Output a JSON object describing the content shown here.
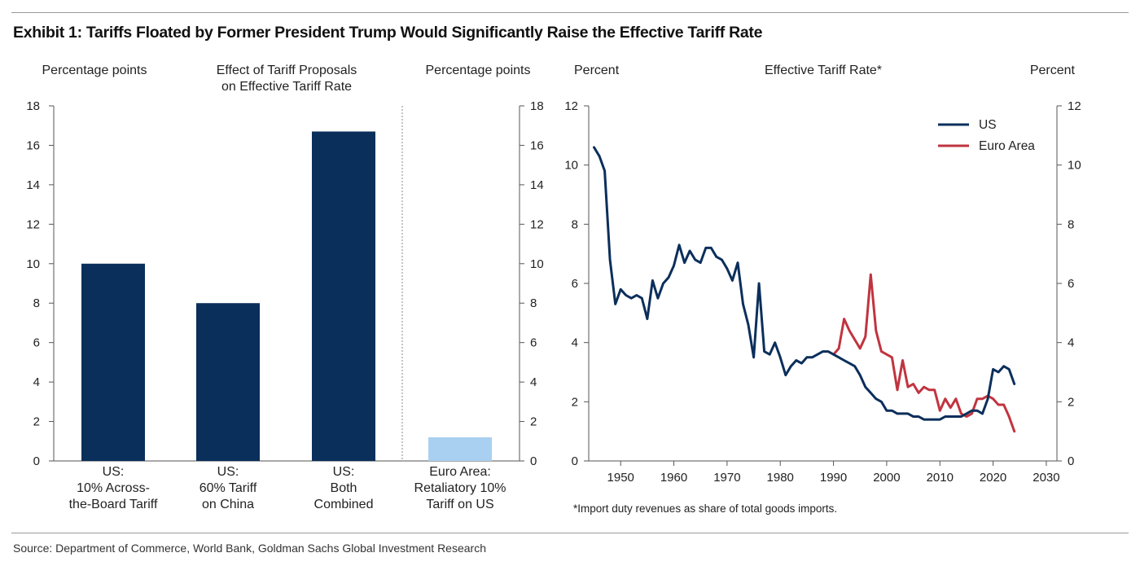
{
  "exhibit_title": "Exhibit 1: Tariffs Floated by Former President Trump Would Significantly Raise the Effective Tariff Rate",
  "source": "Source: Department of Commerce, World Bank, Goldman Sachs Global Investment Research",
  "chart_data": [
    {
      "type": "bar",
      "title": "Effect of Tariff Proposals on Effective Tariff Rate",
      "title_lines": [
        "Effect of Tariff Proposals",
        "on Effective Tariff Rate"
      ],
      "ylabel_left": "Percentage points",
      "ylabel_right": "Percentage points",
      "ylim": [
        0,
        18
      ],
      "yticks": [
        0,
        2,
        4,
        6,
        8,
        10,
        12,
        14,
        16,
        18
      ],
      "categories": [
        [
          "US:",
          "10% Across-",
          "the-Board Tariff"
        ],
        [
          "US:",
          "60% Tariff",
          "on China"
        ],
        [
          "US:",
          "Both",
          "Combined"
        ],
        [
          "Euro Area:",
          "Retaliatory 10%",
          "Tariff on US"
        ]
      ],
      "values": [
        10.0,
        8.0,
        16.7,
        1.2
      ],
      "colors": [
        "#0b2f5b",
        "#0b2f5b",
        "#0b2f5b",
        "#a9d0f0"
      ]
    },
    {
      "type": "line",
      "title": "Effective Tariff Rate*",
      "ylabel_left": "Percent",
      "ylabel_right": "Percent",
      "xlim": [
        1944,
        2032
      ],
      "ylim": [
        0,
        12
      ],
      "xticks": [
        1950,
        1960,
        1970,
        1980,
        1990,
        2000,
        2010,
        2020,
        2030
      ],
      "yticks": [
        0,
        2,
        4,
        6,
        8,
        10,
        12
      ],
      "footnote": "*Import duty revenues as share of total goods imports.",
      "series": [
        {
          "name": "US",
          "color": "#0b2f5b",
          "x": [
            1945,
            1946,
            1947,
            1948,
            1949,
            1950,
            1951,
            1952,
            1953,
            1954,
            1955,
            1956,
            1957,
            1958,
            1959,
            1960,
            1961,
            1962,
            1963,
            1964,
            1965,
            1966,
            1967,
            1968,
            1969,
            1970,
            1971,
            1972,
            1973,
            1974,
            1975,
            1976,
            1977,
            1978,
            1979,
            1980,
            1981,
            1982,
            1983,
            1984,
            1985,
            1986,
            1987,
            1988,
            1989,
            1990,
            1991,
            1992,
            1993,
            1994,
            1995,
            1996,
            1997,
            1998,
            1999,
            2000,
            2001,
            2002,
            2003,
            2004,
            2005,
            2006,
            2007,
            2008,
            2009,
            2010,
            2011,
            2012,
            2013,
            2014,
            2015,
            2016,
            2017,
            2018,
            2019,
            2020,
            2021,
            2022,
            2023,
            2024
          ],
          "values": [
            10.6,
            10.3,
            9.8,
            6.8,
            5.3,
            5.8,
            5.6,
            5.5,
            5.6,
            5.5,
            4.8,
            6.1,
            5.5,
            6.0,
            6.2,
            6.6,
            7.3,
            6.7,
            7.1,
            6.8,
            6.7,
            7.2,
            7.2,
            6.9,
            6.8,
            6.5,
            6.1,
            6.7,
            5.3,
            4.6,
            3.5,
            6.0,
            3.7,
            3.6,
            4.0,
            3.5,
            2.9,
            3.2,
            3.4,
            3.3,
            3.5,
            3.5,
            3.6,
            3.7,
            3.7,
            3.6,
            3.5,
            3.4,
            3.3,
            3.2,
            2.9,
            2.5,
            2.3,
            2.1,
            2.0,
            1.7,
            1.7,
            1.6,
            1.6,
            1.6,
            1.5,
            1.5,
            1.4,
            1.4,
            1.4,
            1.4,
            1.5,
            1.5,
            1.5,
            1.5,
            1.6,
            1.7,
            1.7,
            1.6,
            2.1,
            3.1,
            3.0,
            3.2,
            3.1,
            2.6
          ]
        },
        {
          "name": "Euro Area",
          "color": "#c0343f",
          "x": [
            1990,
            1991,
            1992,
            1993,
            1994,
            1995,
            1996,
            1997,
            1998,
            1999,
            2000,
            2001,
            2002,
            2003,
            2004,
            2005,
            2006,
            2007,
            2008,
            2009,
            2010,
            2011,
            2012,
            2013,
            2014,
            2015,
            2016,
            2017,
            2018,
            2019,
            2020,
            2021,
            2022,
            2023,
            2024
          ],
          "values": [
            3.6,
            3.8,
            4.8,
            4.4,
            4.1,
            3.8,
            4.2,
            6.3,
            4.4,
            3.7,
            3.6,
            3.5,
            2.4,
            3.4,
            2.5,
            2.6,
            2.3,
            2.5,
            2.4,
            2.4,
            1.7,
            2.1,
            1.8,
            2.1,
            1.6,
            1.5,
            1.6,
            2.1,
            2.1,
            2.2,
            2.1,
            1.9,
            1.9,
            1.5,
            1.0
          ]
        }
      ]
    }
  ]
}
